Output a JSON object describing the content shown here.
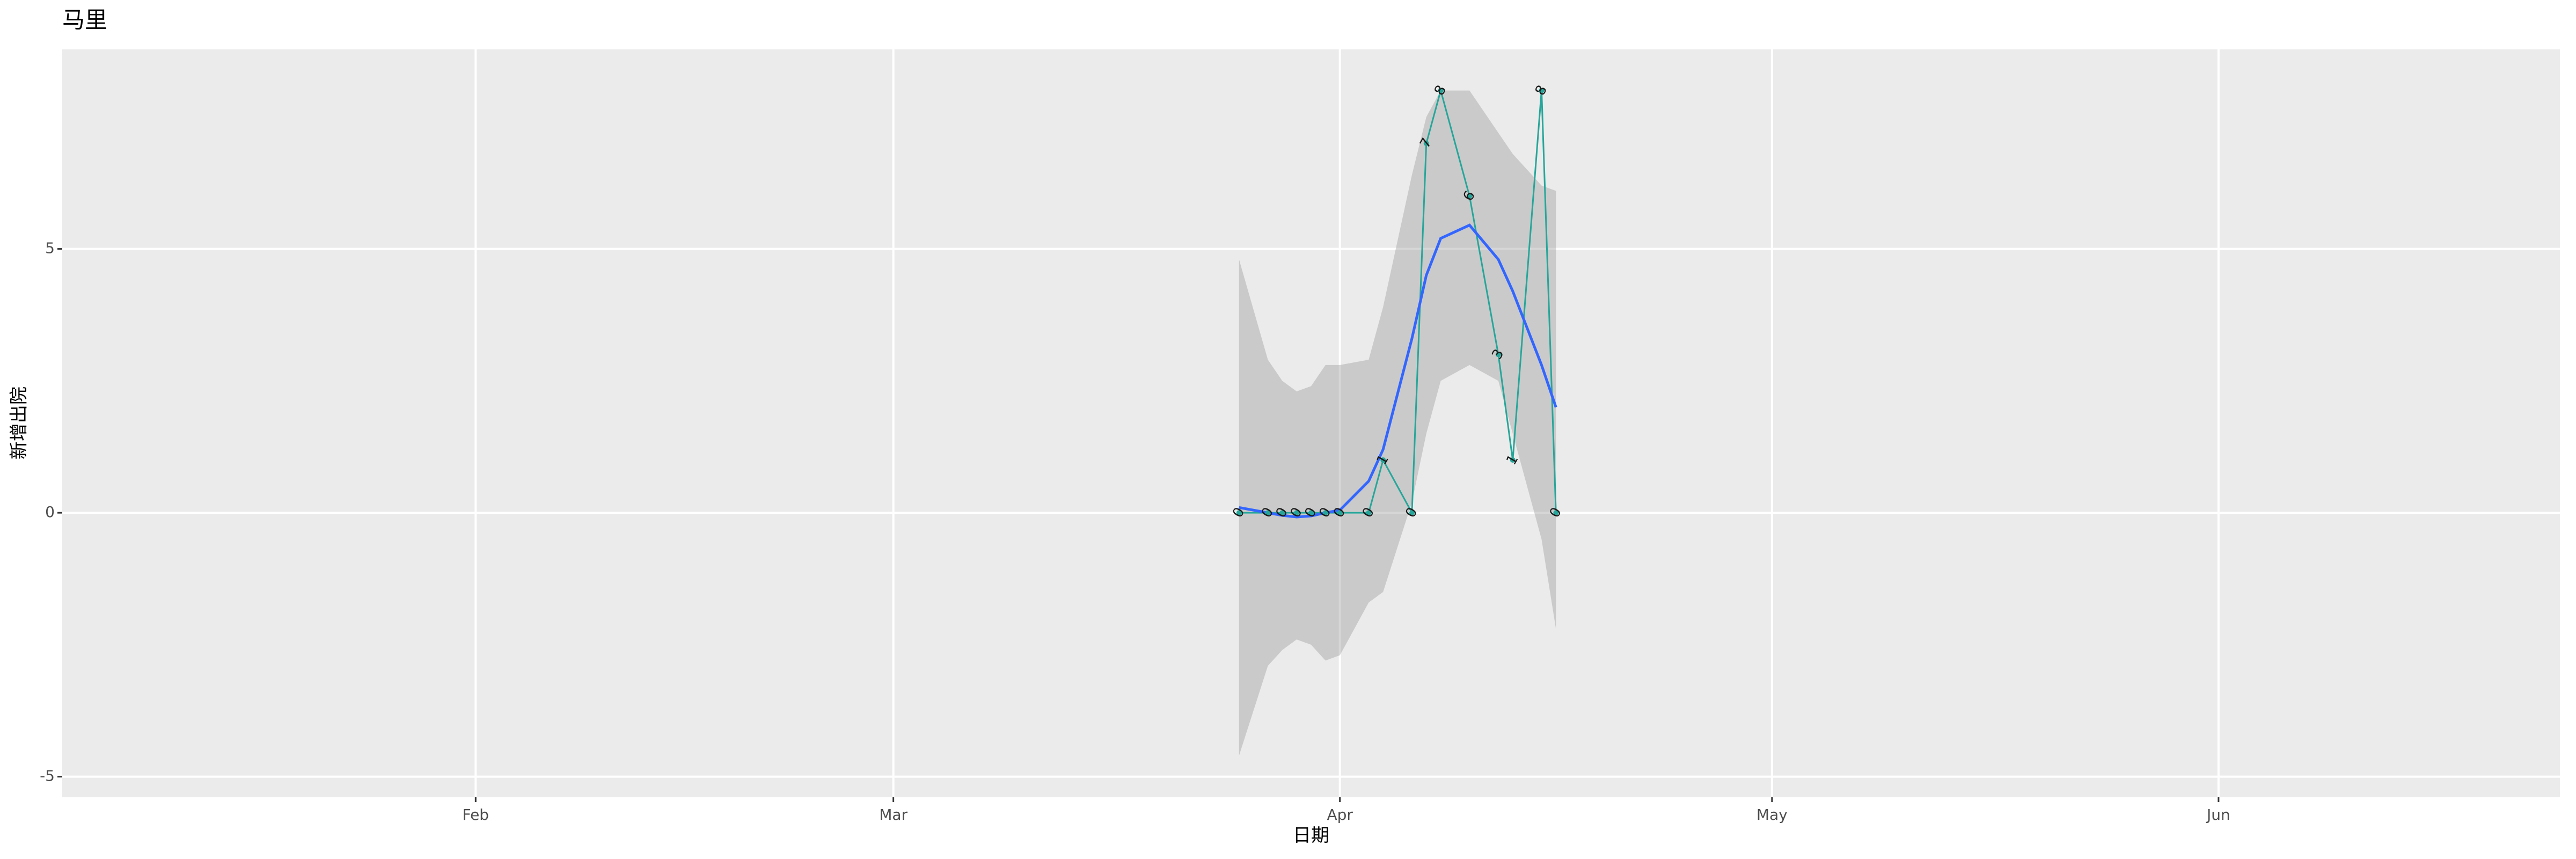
{
  "chart_data": {
    "type": "line",
    "title": "马里",
    "x_label": "日期",
    "y_label": "新增出院",
    "x": [
      84,
      86,
      87,
      88,
      89,
      90,
      91,
      93,
      94,
      96,
      97,
      98,
      100,
      102,
      103,
      105,
      106
    ],
    "values": [
      0,
      0,
      0,
      0,
      0,
      0,
      0,
      0,
      1,
      0,
      7,
      8,
      6,
      3,
      1,
      8,
      0
    ],
    "color": "#26a69a",
    "smooth": {
      "color": "#3366ff",
      "band_color": "#999999",
      "values": [
        0.1,
        0.0,
        -0.05,
        -0.08,
        -0.06,
        0.0,
        0.05,
        0.6,
        1.2,
        3.3,
        4.5,
        5.2,
        5.45,
        4.8,
        4.2,
        2.8,
        2.0
      ],
      "upper": [
        4.8,
        2.9,
        2.5,
        2.3,
        2.4,
        2.8,
        2.8,
        2.9,
        3.9,
        6.4,
        7.5,
        8.0,
        8.0,
        7.2,
        6.8,
        6.2,
        6.1
      ],
      "lower": [
        -4.6,
        -2.9,
        -2.6,
        -2.4,
        -2.5,
        -2.8,
        -2.7,
        -1.7,
        -1.5,
        0.2,
        1.5,
        2.5,
        2.8,
        2.5,
        1.5,
        -0.5,
        -2.2
      ]
    },
    "xlim": [
      2.3,
      175.7
    ],
    "xticks": [
      {
        "value": 31,
        "label": "Feb"
      },
      {
        "value": 60,
        "label": "Mar"
      },
      {
        "value": 91,
        "label": "Apr"
      },
      {
        "value": 121,
        "label": "May"
      },
      {
        "value": 152,
        "label": "Jun"
      }
    ],
    "ylim": [
      -5.39,
      8.78
    ],
    "yticks": [
      -5,
      0,
      5
    ],
    "grid": true
  }
}
